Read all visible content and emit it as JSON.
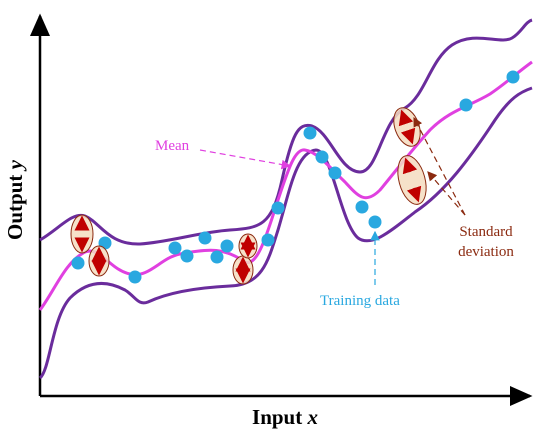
{
  "axes": {
    "x": {
      "label": "Input",
      "variable": "x"
    },
    "y": {
      "label": "Output",
      "variable": "y"
    }
  },
  "annotations": {
    "mean": "Mean",
    "training_data": "Training data",
    "standard_deviation": [
      "Standard",
      "deviation"
    ]
  }
}
